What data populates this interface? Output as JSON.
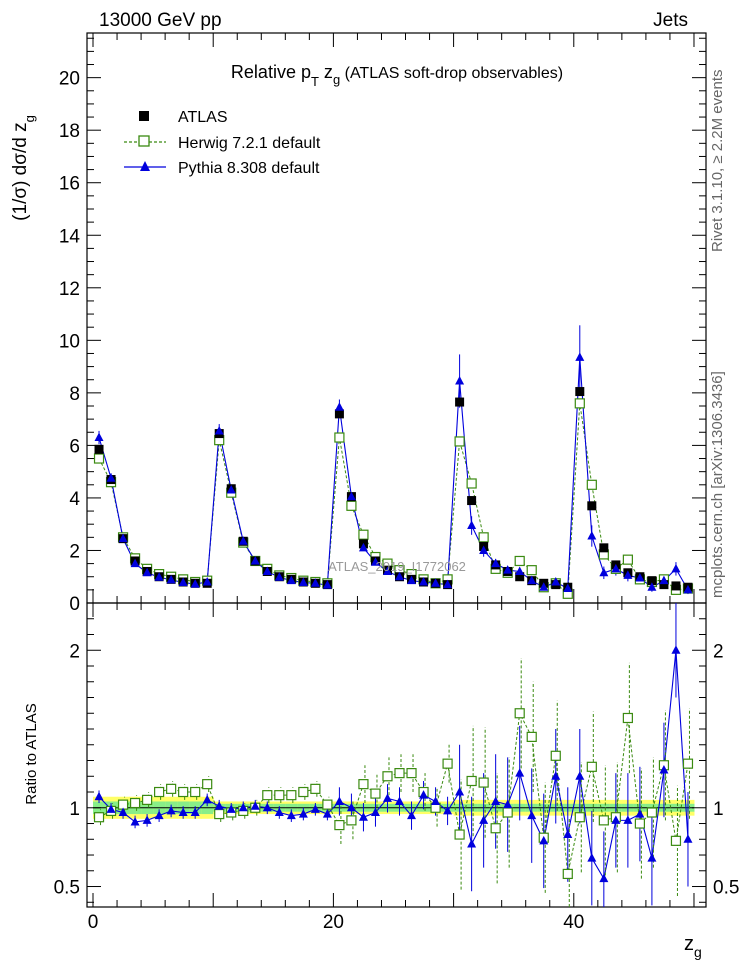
{
  "header": {
    "left": "13000 GeV pp",
    "right": "Jets",
    "side_right_top": "Rivet 3.1.10, ≥ 2.2M events",
    "side_right_bottom": "mcplots.cern.ch [arXiv:1306.3436]",
    "watermark": "ATLAS_2019_I1772062"
  },
  "top_panel": {
    "title_main": "Relative p",
    "title_sub1": "T",
    "title_mid": " z",
    "title_sub2": "g",
    "title_rest": " (ATLAS soft-drop observables)",
    "ylabel_main": "(1/σ) dσ/d z",
    "ylabel_sub": "g"
  },
  "bottom_panel": {
    "ylabel": "Ratio to ATLAS"
  },
  "xlabel_main": "z",
  "xlabel_sub": "g",
  "legend": [
    {
      "label": "ATLAS"
    },
    {
      "label": "Herwig 7.2.1 default"
    },
    {
      "label": "Pythia 8.308 default"
    }
  ],
  "colors": {
    "atlas": "#000000",
    "herwig": "#3a8a10",
    "pythia": "#0000dd",
    "band_inner": "#88ee88",
    "band_outer": "#ffff66"
  },
  "chart_data": [
    {
      "type": "scatter",
      "x_range": [
        -0.5,
        51
      ],
      "ylim": [
        0,
        21.7
      ],
      "y_ticks": [
        0,
        2,
        4,
        6,
        8,
        10,
        12,
        14,
        16,
        18,
        20
      ],
      "x_ticks": [
        0,
        20,
        40
      ],
      "x": [
        0.5,
        1.5,
        2.5,
        3.5,
        4.5,
        5.5,
        6.5,
        7.5,
        8.5,
        9.5,
        10.5,
        11.5,
        12.5,
        13.5,
        14.5,
        15.5,
        16.5,
        17.5,
        18.5,
        19.5,
        20.5,
        21.5,
        22.5,
        23.5,
        24.5,
        25.5,
        26.5,
        27.5,
        28.5,
        29.5,
        30.5,
        31.5,
        32.5,
        33.5,
        34.5,
        35.5,
        36.5,
        37.5,
        38.5,
        39.5,
        40.5,
        41.5,
        42.5,
        43.5,
        44.5,
        45.5,
        46.5,
        47.5,
        48.5,
        49.5
      ],
      "series": [
        {
          "name": "ATLAS",
          "values": [
            5.85,
            4.7,
            2.45,
            1.6,
            1.2,
            1.0,
            0.9,
            0.8,
            0.75,
            0.75,
            6.45,
            4.35,
            2.35,
            1.6,
            1.2,
            1.0,
            0.9,
            0.8,
            0.75,
            0.7,
            7.2,
            4.05,
            2.25,
            1.6,
            1.25,
            1.0,
            0.9,
            0.8,
            0.75,
            0.7,
            7.65,
            3.9,
            2.15,
            1.45,
            1.2,
            1.0,
            0.85,
            0.75,
            0.7,
            0.6,
            8.05,
            3.7,
            2.1,
            1.45,
            1.15,
            1.0,
            0.85,
            0.7,
            0.65,
            0.6
          ]
        },
        {
          "name": "Herwig 7.2.1 default",
          "values": [
            5.5,
            4.6,
            2.5,
            1.7,
            1.3,
            1.1,
            1.0,
            0.9,
            0.8,
            0.85,
            6.2,
            4.2,
            2.3,
            1.6,
            1.3,
            1.05,
            0.95,
            0.85,
            0.8,
            0.75,
            6.3,
            3.7,
            2.6,
            1.75,
            1.5,
            1.25,
            1.1,
            0.9,
            0.75,
            0.9,
            6.15,
            4.55,
            2.5,
            1.3,
            1.15,
            1.6,
            1.25,
            0.6,
            0.75,
            0.35,
            7.6,
            4.5,
            1.85,
            1.3,
            1.65,
            0.9,
            0.8,
            0.9,
            0.5,
            0.55
          ]
        },
        {
          "name": "Pythia 8.308 default",
          "values": [
            6.3,
            4.75,
            2.45,
            1.5,
            1.15,
            0.98,
            0.88,
            0.78,
            0.72,
            0.8,
            6.55,
            4.3,
            2.35,
            1.6,
            1.2,
            0.98,
            0.85,
            0.78,
            0.75,
            0.68,
            7.45,
            4.05,
            2.1,
            1.55,
            1.2,
            1.0,
            0.85,
            0.8,
            0.75,
            0.7,
            8.45,
            2.95,
            2.0,
            1.5,
            1.25,
            1.2,
            0.85,
            0.6,
            0.8,
            0.55,
            9.35,
            2.55,
            1.15,
            1.3,
            1.05,
            0.95,
            0.6,
            0.85,
            1.3,
            0.5
          ]
        }
      ]
    },
    {
      "type": "scatter",
      "ylim": [
        0.37,
        2.3
      ],
      "y_ticks": [
        0.5,
        1,
        2
      ],
      "x": [
        0.5,
        1.5,
        2.5,
        3.5,
        4.5,
        5.5,
        6.5,
        7.5,
        8.5,
        9.5,
        10.5,
        11.5,
        12.5,
        13.5,
        14.5,
        15.5,
        16.5,
        17.5,
        18.5,
        19.5,
        20.5,
        21.5,
        22.5,
        23.5,
        24.5,
        25.5,
        26.5,
        27.5,
        28.5,
        29.5,
        30.5,
        31.5,
        32.5,
        33.5,
        34.5,
        35.5,
        36.5,
        37.5,
        38.5,
        39.5,
        40.5,
        41.5,
        42.5,
        43.5,
        44.5,
        45.5,
        46.5,
        47.5,
        48.5,
        49.5
      ],
      "series": [
        {
          "name": "Herwig 7.2.1 default",
          "values": [
            0.94,
            0.98,
            1.02,
            1.03,
            1.05,
            1.1,
            1.12,
            1.1,
            1.1,
            1.15,
            0.96,
            0.97,
            0.98,
            1.0,
            1.08,
            1.08,
            1.08,
            1.1,
            1.12,
            1.02,
            0.89,
            0.92,
            1.15,
            1.09,
            1.2,
            1.22,
            1.22,
            1.1,
            1.0,
            1.28,
            0.83,
            1.17,
            1.16,
            0.87,
            0.97,
            1.6,
            1.45,
            0.81,
            1.33,
            0.58,
            0.94,
            1.26,
            0.92,
            0.94,
            1.57,
            0.9,
            0.97,
            1.27,
            0.79,
            1.28
          ]
        },
        {
          "name": "Pythia 8.308 default",
          "values": [
            1.07,
            0.99,
            0.97,
            0.91,
            0.92,
            0.95,
            0.98,
            0.97,
            0.97,
            1.05,
            1.01,
            0.99,
            1.0,
            1.01,
            1.0,
            0.97,
            0.95,
            0.96,
            0.99,
            0.96,
            1.04,
            1.0,
            0.94,
            0.97,
            1.06,
            1.04,
            0.95,
            1.08,
            1.04,
            0.98,
            1.1,
            0.77,
            0.92,
            1.04,
            1.02,
            1.22,
            0.95,
            0.79,
            1.2,
            0.83,
            1.2,
            0.68,
            0.55,
            0.92,
            0.92,
            0.96,
            0.68,
            1.24,
            2.0,
            0.8
          ]
        }
      ]
    }
  ]
}
